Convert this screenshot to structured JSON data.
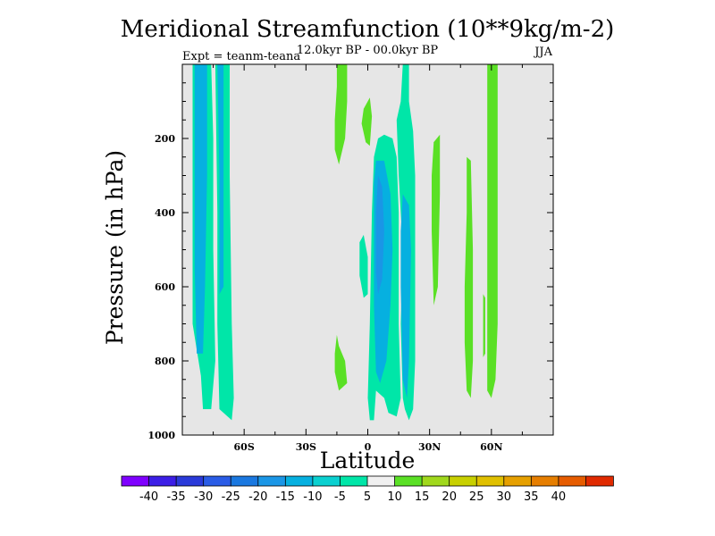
{
  "chart_data": {
    "type": "heatmap",
    "title": "Meridional Streamfunction (10**9kg/m-2)",
    "subtitle": "12.0kyr BP - 00.0kyr BP",
    "season": "JJA",
    "experiment": "Expt = teanm-teana",
    "xlabel": "Latitude",
    "ylabel": "Pressure (in hPa)",
    "xlim": [
      -90,
      90
    ],
    "ylim": [
      1000,
      0
    ],
    "x_ticks": [
      {
        "value": -60,
        "label": "60S"
      },
      {
        "value": -30,
        "label": "30S"
      },
      {
        "value": 0,
        "label": "0"
      },
      {
        "value": 30,
        "label": "30N"
      },
      {
        "value": 60,
        "label": "60N"
      }
    ],
    "y_ticks": [
      {
        "value": 200,
        "label": "200"
      },
      {
        "value": 400,
        "label": "400"
      },
      {
        "value": 600,
        "label": "600"
      },
      {
        "value": 800,
        "label": "800"
      },
      {
        "value": 1000,
        "label": "1000"
      }
    ],
    "background_color": "#e6e6e6",
    "contour_levels": [
      -40,
      -35,
      -30,
      -25,
      -20,
      -15,
      -10,
      -5,
      5,
      10,
      15,
      20,
      25,
      30,
      35,
      40
    ],
    "colorbar_colors": [
      "#7f00ff",
      "#3c1ee6",
      "#2a3ad9",
      "#2a5ce6",
      "#1a78e0",
      "#1a96e6",
      "#06b0e0",
      "#0ad0d0",
      "#00e6a8",
      "#f0f0f0",
      "#5ae025",
      "#a0d81c",
      "#c8d000",
      "#e0c000",
      "#e6a000",
      "#e67e00",
      "#e65c00",
      "#e02a00"
    ],
    "regions": [
      {
        "value": -10,
        "color": "#00e6a8",
        "points": [
          [
            -85,
            0
          ],
          [
            -76,
            0
          ],
          [
            -75,
            200
          ],
          [
            -75,
            500
          ],
          [
            -74,
            800
          ],
          [
            -76,
            930
          ],
          [
            -80,
            930
          ],
          [
            -81,
            840
          ],
          [
            -85,
            700
          ],
          [
            -85,
            300
          ]
        ]
      },
      {
        "value": -15,
        "color": "#06b0e0",
        "points": [
          [
            -84,
            0
          ],
          [
            -78,
            0
          ],
          [
            -78,
            300
          ],
          [
            -79,
            600
          ],
          [
            -80,
            780
          ],
          [
            -83,
            780
          ],
          [
            -84,
            550
          ],
          [
            -84,
            200
          ]
        ]
      },
      {
        "value": -10,
        "color": "#00e6a8",
        "points": [
          [
            -74,
            0
          ],
          [
            -67,
            0
          ],
          [
            -67,
            300
          ],
          [
            -66,
            700
          ],
          [
            -65,
            900
          ],
          [
            -66,
            960
          ],
          [
            -68,
            950
          ],
          [
            -72,
            930
          ],
          [
            -73,
            700
          ],
          [
            -73,
            400
          ]
        ]
      },
      {
        "value": -15,
        "color": "#06b0e0",
        "points": [
          [
            -73,
            0
          ],
          [
            -70,
            0
          ],
          [
            -70,
            300
          ],
          [
            -70,
            600
          ],
          [
            -72,
            620
          ],
          [
            -72,
            300
          ]
        ]
      },
      {
        "value": 5,
        "color": "#5ae025",
        "points": [
          [
            -15,
            0
          ],
          [
            -10,
            0
          ],
          [
            -10,
            100
          ],
          [
            -11,
            200
          ],
          [
            -14,
            270
          ],
          [
            -16,
            230
          ],
          [
            -16,
            150
          ],
          [
            -15,
            60
          ]
        ]
      },
      {
        "value": 5,
        "color": "#5ae025",
        "points": [
          [
            -15,
            730
          ],
          [
            -14,
            760
          ],
          [
            -11,
            800
          ],
          [
            -10,
            860
          ],
          [
            -14,
            880
          ],
          [
            -16,
            830
          ],
          [
            -16,
            780
          ]
        ]
      },
      {
        "value": 5,
        "color": "#5ae025",
        "points": [
          [
            -2,
            120
          ],
          [
            1,
            90
          ],
          [
            2,
            140
          ],
          [
            1,
            220
          ],
          [
            -1,
            210
          ],
          [
            -3,
            160
          ]
        ]
      },
      {
        "value": -10,
        "color": "#00e6a8",
        "points": [
          [
            -4,
            480
          ],
          [
            -2,
            460
          ],
          [
            0,
            520
          ],
          [
            0,
            620
          ],
          [
            -2,
            630
          ],
          [
            -4,
            570
          ]
        ]
      },
      {
        "value": -10,
        "color": "#00e6a8",
        "points": [
          [
            17,
            0
          ],
          [
            20,
            0
          ],
          [
            20,
            100
          ],
          [
            22,
            180
          ],
          [
            23,
            300
          ],
          [
            23,
            600
          ],
          [
            23,
            800
          ],
          [
            22,
            930
          ],
          [
            20,
            960
          ],
          [
            18,
            930
          ],
          [
            17,
            900
          ],
          [
            16,
            700
          ],
          [
            17,
            500
          ],
          [
            15,
            300
          ],
          [
            14,
            150
          ],
          [
            16,
            100
          ]
        ]
      },
      {
        "value": -10,
        "color": "#00e6a8",
        "points": [
          [
            8,
            190
          ],
          [
            12,
            200
          ],
          [
            14,
            250
          ],
          [
            15,
            400
          ],
          [
            15,
            700
          ],
          [
            16,
            900
          ],
          [
            14,
            950
          ],
          [
            10,
            940
          ],
          [
            8,
            900
          ],
          [
            4,
            880
          ],
          [
            3,
            960
          ],
          [
            1,
            960
          ],
          [
            0,
            900
          ],
          [
            1,
            700
          ],
          [
            2,
            400
          ],
          [
            3,
            250
          ],
          [
            5,
            200
          ]
        ]
      },
      {
        "value": -15,
        "color": "#06b0e0",
        "points": [
          [
            4,
            260
          ],
          [
            8,
            260
          ],
          [
            11,
            350
          ],
          [
            12,
            500
          ],
          [
            11,
            650
          ],
          [
            9,
            800
          ],
          [
            6,
            860
          ],
          [
            4,
            830
          ],
          [
            3,
            650
          ],
          [
            3,
            450
          ],
          [
            3,
            320
          ]
        ]
      },
      {
        "value": -20,
        "color": "#1a96e6",
        "points": [
          [
            5,
            300
          ],
          [
            7,
            330
          ],
          [
            8,
            450
          ],
          [
            7,
            580
          ],
          [
            5,
            620
          ],
          [
            4,
            560
          ],
          [
            4,
            400
          ]
        ]
      },
      {
        "value": -15,
        "color": "#06b0e0",
        "points": [
          [
            17,
            350
          ],
          [
            20,
            380
          ],
          [
            21,
            500
          ],
          [
            20,
            800
          ],
          [
            19,
            900
          ],
          [
            17,
            850
          ],
          [
            16,
            600
          ],
          [
            16,
            450
          ]
        ]
      },
      {
        "value": 5,
        "color": "#5ae025",
        "points": [
          [
            32,
            210
          ],
          [
            35,
            190
          ],
          [
            35,
            350
          ],
          [
            34,
            600
          ],
          [
            32,
            650
          ],
          [
            31,
            450
          ],
          [
            31,
            300
          ]
        ]
      },
      {
        "value": 5,
        "color": "#5ae025",
        "points": [
          [
            48,
            250
          ],
          [
            50,
            260
          ],
          [
            51,
            500
          ],
          [
            51,
            800
          ],
          [
            50,
            900
          ],
          [
            48,
            880
          ],
          [
            47,
            750
          ],
          [
            47,
            600
          ],
          [
            48,
            400
          ]
        ]
      },
      {
        "value": 5,
        "color": "#5ae025",
        "points": [
          [
            58,
            0
          ],
          [
            63,
            0
          ],
          [
            63,
            300
          ],
          [
            63,
            700
          ],
          [
            62,
            850
          ],
          [
            60,
            900
          ],
          [
            58,
            880
          ],
          [
            58,
            600
          ],
          [
            58,
            200
          ]
        ]
      },
      {
        "value": 5,
        "color": "#5ae025",
        "points": [
          [
            56,
            620
          ],
          [
            57,
            630
          ],
          [
            57,
            780
          ],
          [
            56,
            790
          ]
        ]
      }
    ]
  }
}
